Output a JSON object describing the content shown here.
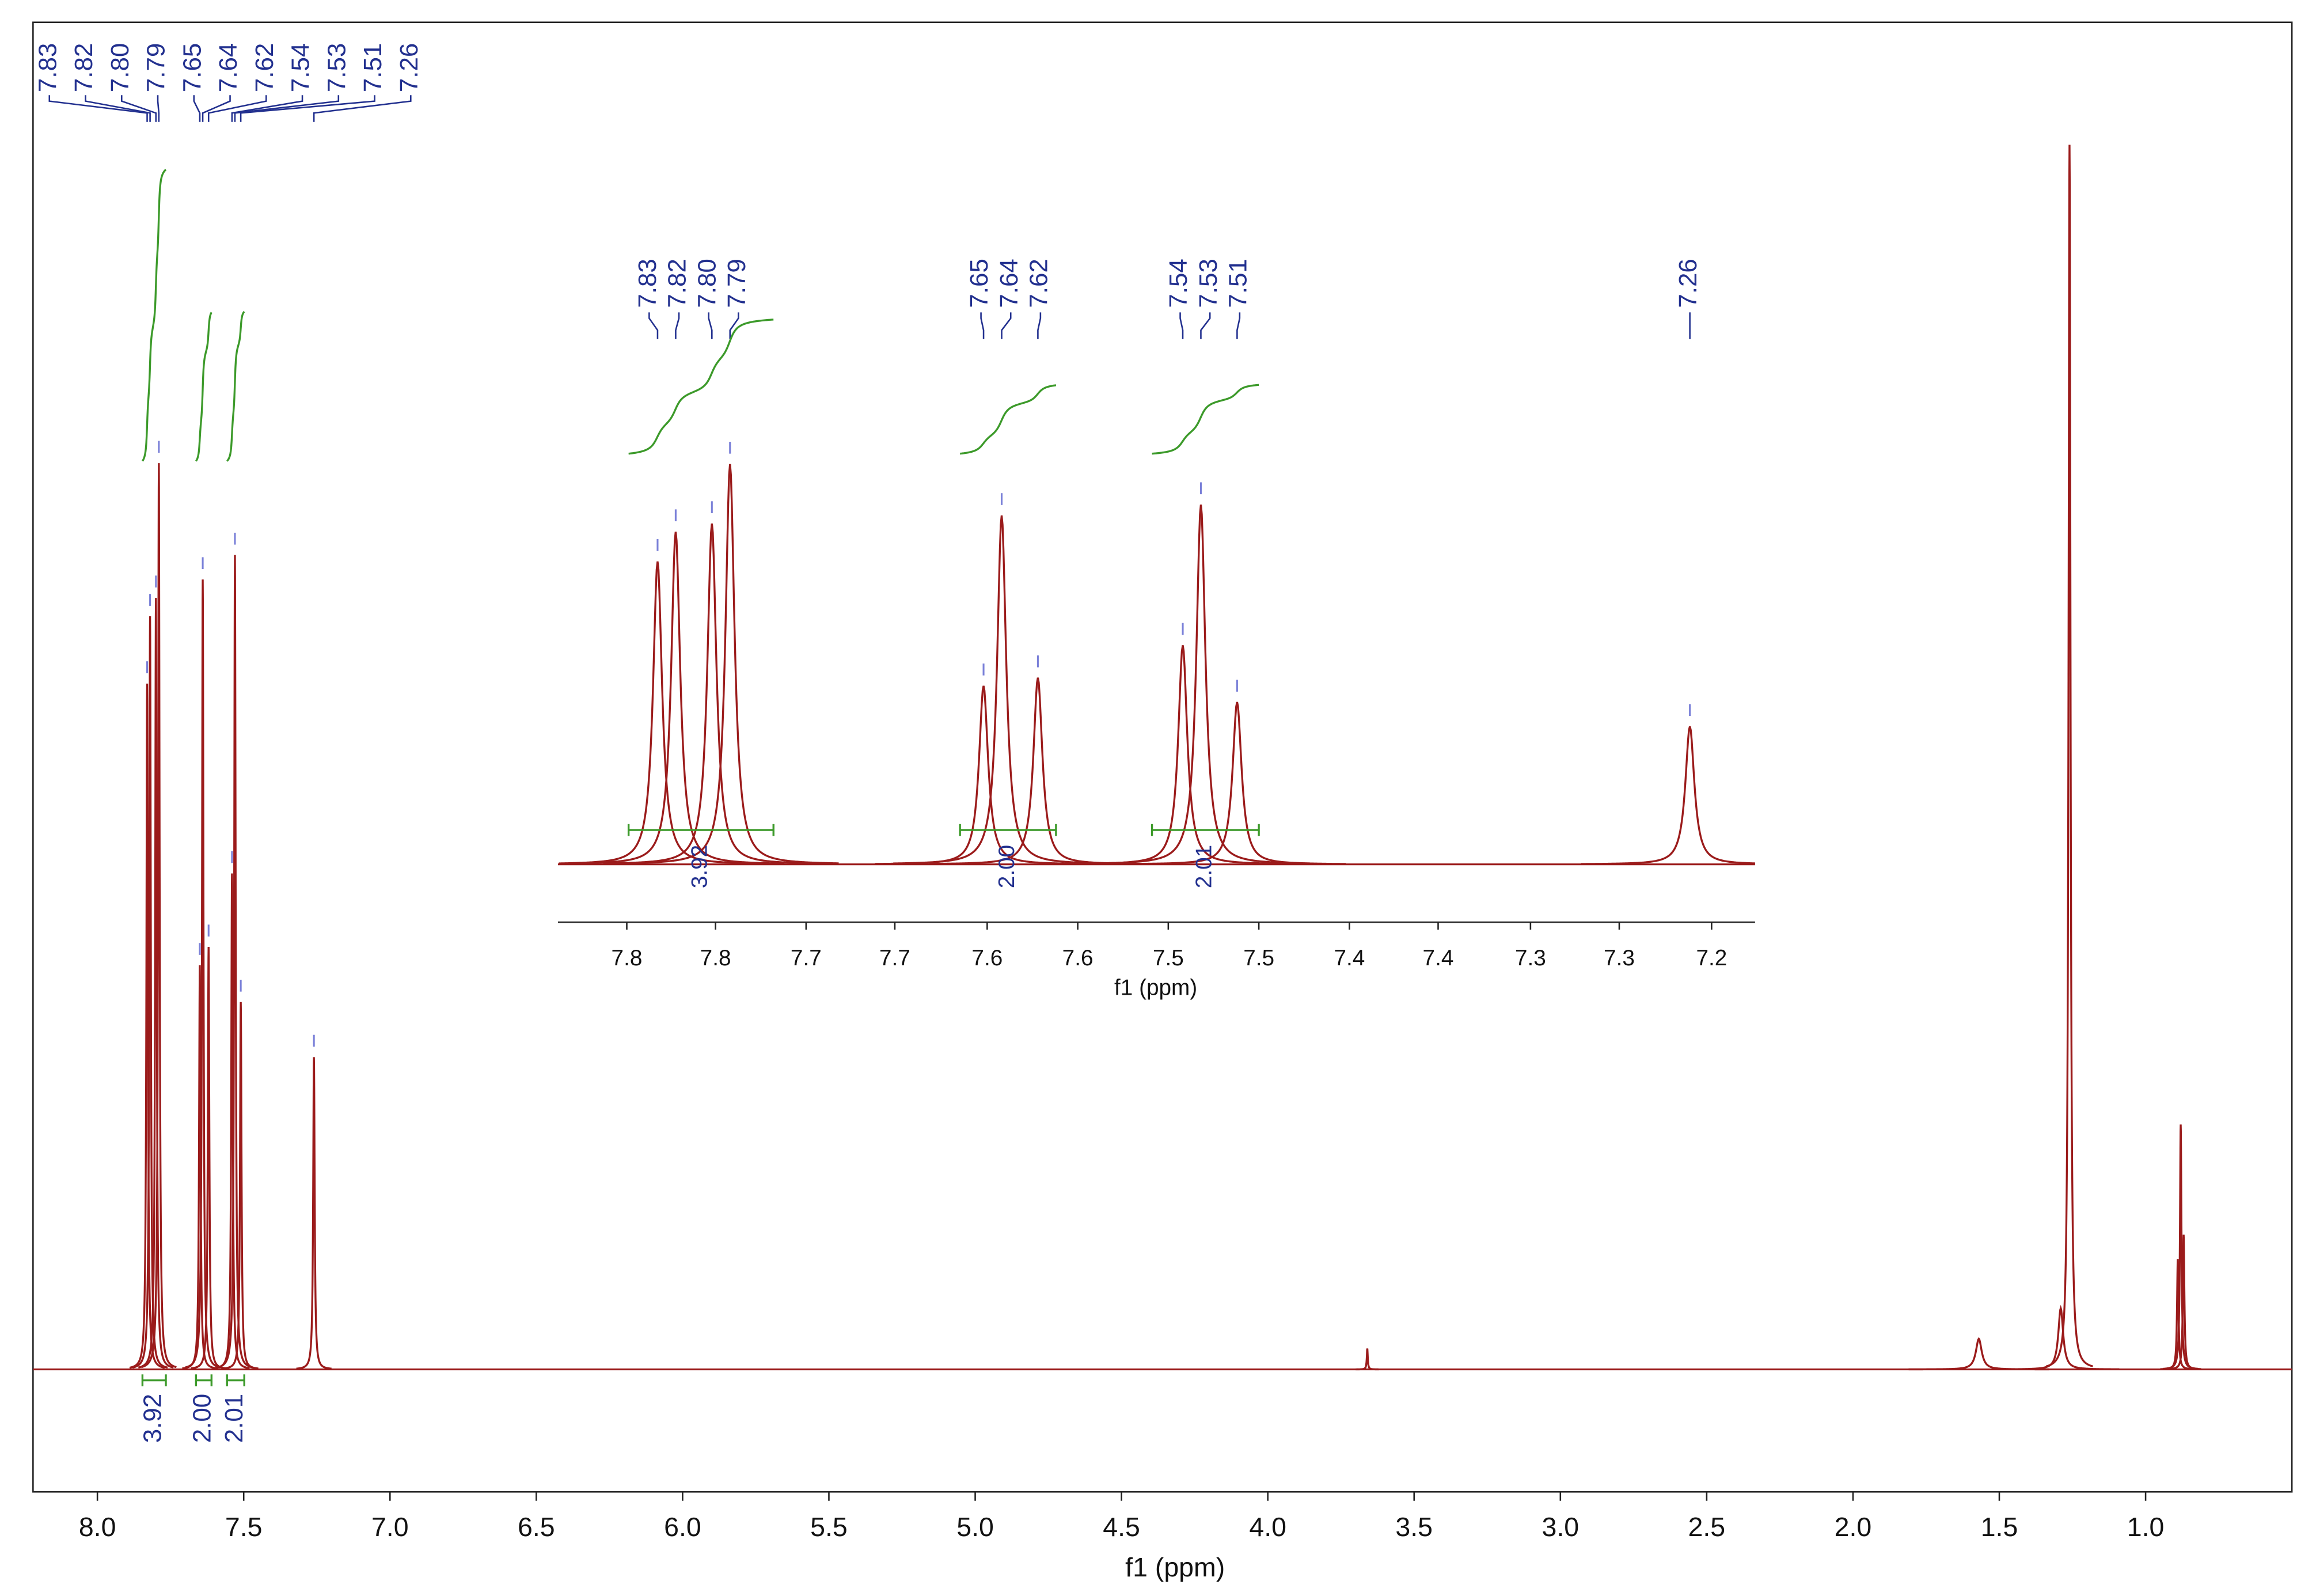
{
  "chart_data": {
    "type": "nmr-spectrum",
    "color": "#9b1b1b",
    "label_color": "#22308f",
    "integral_color": "#3c9a2a",
    "main": {
      "xlim": [
        8.22,
        0.5
      ],
      "ylim": [
        -0.1,
        1.1
      ],
      "xticks": [
        {
          "value": 8,
          "label": "8.0"
        },
        7.5,
        {
          "value": 7,
          "label": "7.0"
        },
        6.5,
        {
          "value": 6,
          "label": "6.0"
        },
        5.5,
        {
          "value": 5,
          "label": "5.0"
        },
        4.5,
        {
          "value": 4,
          "label": "4.0"
        },
        3.5,
        {
          "value": 3,
          "label": "3.0"
        },
        2.5,
        {
          "value": 2,
          "label": "2.0"
        },
        1.5,
        {
          "value": 1,
          "label": "1.0"
        }
      ],
      "xlabel": "f1 (ppm)"
    },
    "inset": {
      "xlim": [
        7.885,
        7.224
      ],
      "ylim": [
        -0.107,
        1.103
      ],
      "xticks": [
        {
          "value": 7.847,
          "label": "7.8"
        },
        {
          "value": 7.798,
          "label": "7.8"
        },
        {
          "value": 7.748,
          "label": "7.7"
        },
        {
          "value": 7.699,
          "label": "7.7"
        },
        {
          "value": 7.648,
          "label": "7.6"
        },
        {
          "value": 7.598,
          "label": "7.6"
        },
        {
          "value": 7.548,
          "label": "7.5"
        },
        {
          "value": 7.498,
          "label": "7.5"
        },
        {
          "value": 7.448,
          "label": "7.4"
        },
        {
          "value": 7.399,
          "label": "7.4"
        },
        {
          "value": 7.348,
          "label": "7.3"
        },
        {
          "value": 7.299,
          "label": "7.3"
        },
        {
          "value": 7.248,
          "label": "7.2"
        }
      ],
      "xlabel": "f1 (ppm)"
    },
    "peaks": {
      "x": [
        7.83,
        7.82,
        7.8,
        7.79,
        7.65,
        7.64,
        7.62,
        7.54,
        7.53,
        7.51,
        7.26,
        3.66,
        1.57,
        1.29,
        1.26,
        0.89,
        0.88,
        0.87
      ],
      "values": [
        0.56,
        0.615,
        0.63,
        0.74,
        0.33,
        0.645,
        0.345,
        0.405,
        0.665,
        0.3,
        0.255,
        0.017,
        0.025,
        0.05,
        1.0,
        0.09,
        0.2,
        0.11
      ],
      "widths": [
        0.003,
        0.003,
        0.003,
        0.003,
        0.003,
        0.003,
        0.003,
        0.003,
        0.003,
        0.003,
        0.003,
        0.002,
        0.012,
        0.01,
        0.004,
        0.003,
        0.003,
        0.003
      ],
      "labels": [
        "7.83",
        "7.82",
        "7.80",
        "7.79",
        "7.65",
        "7.64",
        "7.62",
        "7.54",
        "7.53",
        "7.51",
        "7.26",
        null,
        null,
        null,
        null,
        null,
        null,
        null
      ]
    },
    "integrals": {
      "values": [
        3.92,
        2.0,
        2.01
      ],
      "value_labels": [
        "3.92",
        "2.00",
        "2.01"
      ],
      "ranges": [
        [
          7.846,
          7.766
        ],
        [
          7.663,
          7.61
        ],
        [
          7.557,
          7.498
        ]
      ]
    }
  }
}
